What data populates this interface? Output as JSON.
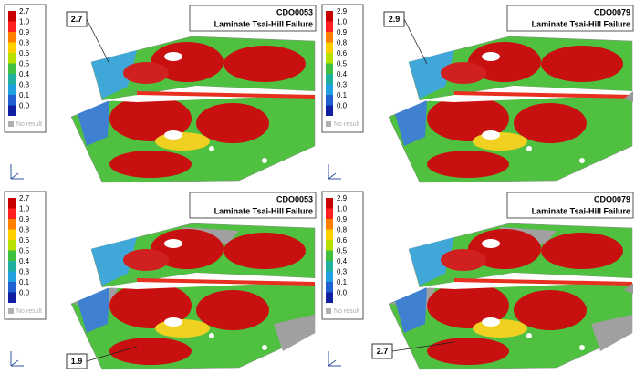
{
  "panels": [
    {
      "legend": {
        "labels": [
          "2.7",
          "1.0",
          "0.9",
          "0.8",
          "0.6",
          "0.5",
          "0.4",
          "0.3",
          "0.1",
          "0.0"
        ],
        "no_result": "No result"
      },
      "title": {
        "id": "CDO0053",
        "caption": "Laminate Tsai-Hill Failure"
      },
      "callout": "2.7"
    },
    {
      "legend": {
        "labels": [
          "2.9",
          "1.0",
          "0.9",
          "0.8",
          "0.6",
          "0.5",
          "0.4",
          "0.3",
          "0.1",
          "0.0"
        ],
        "no_result": "No result"
      },
      "title": {
        "id": "CDO0079",
        "caption": "Laminate Tsai-Hill Failure"
      },
      "callout": "2.9"
    },
    {
      "legend": {
        "labels": [
          "2.7",
          "1.0",
          "0.9",
          "0.8",
          "0.6",
          "0.5",
          "0.4",
          "0.3",
          "0.1",
          "0.0"
        ],
        "no_result": "No result"
      },
      "title": {
        "id": "CDO0053",
        "caption": "Laminate Tsai-Hill Failure"
      },
      "callout": "1.9"
    },
    {
      "legend": {
        "labels": [
          "2.9",
          "1.0",
          "0.9",
          "0.8",
          "0.6",
          "0.5",
          "0.4",
          "0.3",
          "0.1",
          "0.0"
        ],
        "no_result": "No result"
      },
      "title": {
        "id": "CDO0079",
        "caption": "Laminate Tsai-Hill Failure"
      },
      "callout": "2.7"
    }
  ]
}
